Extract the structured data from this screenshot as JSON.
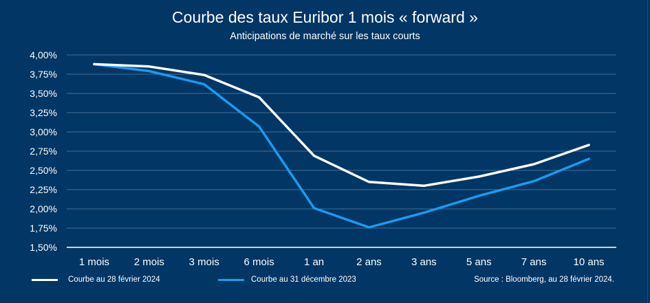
{
  "chart_data": {
    "type": "line",
    "title": "Courbe des taux Euribor 1 mois « forward »",
    "subtitle": "Anticipations de marché sur les taux courts",
    "xlabel": "",
    "ylabel": "",
    "categories": [
      "1 mois",
      "2 mois",
      "3 mois",
      "6 mois",
      "1 an",
      "2 ans",
      "3 ans",
      "5 ans",
      "7 ans",
      "10 ans"
    ],
    "yticks": [
      "1,50%",
      "1,75%",
      "2,00%",
      "2,25%",
      "2,50%",
      "2,75%",
      "3,00%",
      "3,25%",
      "3,50%",
      "3,75%",
      "4,00%"
    ],
    "ylim": [
      1.5,
      4.0
    ],
    "ytick_step": 0.25,
    "grid": true,
    "legend_position": "bottom-left",
    "series": [
      {
        "name": "Courbe au 28 février 2024",
        "color": "#ffffff",
        "values": [
          3.88,
          3.85,
          3.74,
          3.45,
          2.69,
          2.35,
          2.3,
          2.42,
          2.58,
          2.83
        ]
      },
      {
        "name": "Courbe au 31 décembre 2023",
        "color": "#1a9bf0",
        "values": [
          3.88,
          3.79,
          3.62,
          3.07,
          2.01,
          1.76,
          1.95,
          2.17,
          2.36,
          2.65
        ]
      }
    ],
    "source": "Source :  Bloomberg, au 28 février 2024."
  },
  "colors": {
    "background": "#013665",
    "grid": "#4a6d92",
    "axis": "#c9d3de"
  }
}
